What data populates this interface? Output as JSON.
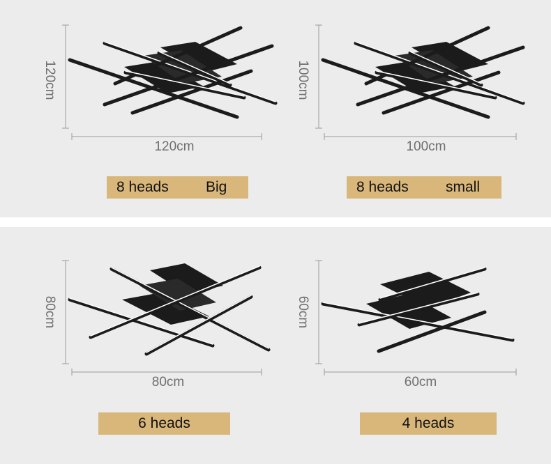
{
  "products": [
    {
      "height_label": "120cm",
      "width_label": "120cm",
      "heads": "8 heads",
      "size": "Big"
    },
    {
      "height_label": "100cm",
      "width_label": "100cm",
      "heads": "8 heads",
      "size": "small"
    },
    {
      "height_label": "80cm",
      "width_label": "80cm",
      "heads": "6 heads",
      "size": ""
    },
    {
      "height_label": "60cm",
      "width_label": "60cm",
      "heads": "4 heads",
      "size": ""
    }
  ],
  "colors": {
    "background": "#ececec",
    "label_fill": "#d9b77a",
    "dimension_line": "#9a9a9a",
    "lamp": "#1b1b1b",
    "lamp_glow": "#ffffff"
  }
}
